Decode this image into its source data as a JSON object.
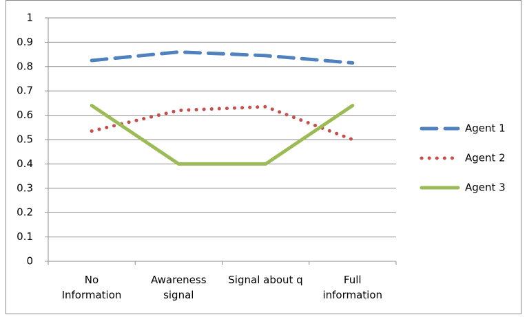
{
  "chart_data": {
    "type": "line",
    "categories": [
      "No\nInformation",
      "Awareness\nsignal",
      "Signal about q",
      "Full\ninformation"
    ],
    "series": [
      {
        "name": "Agent 1",
        "color": "#4f81bd",
        "style": "dashed",
        "values": [
          0.825,
          0.86,
          0.845,
          0.815
        ]
      },
      {
        "name": "Agent 2",
        "color": "#c0504d",
        "style": "dotted",
        "values": [
          0.535,
          0.62,
          0.635,
          0.5
        ]
      },
      {
        "name": "Agent 3",
        "color": "#9bbb59",
        "style": "solid",
        "values": [
          0.64,
          0.4,
          0.4,
          0.64
        ]
      }
    ],
    "ylim": [
      0,
      1
    ],
    "yticks": [
      0,
      0.1,
      0.2,
      0.3,
      0.4,
      0.5,
      0.6,
      0.7,
      0.8,
      0.9,
      1
    ],
    "grid": true,
    "legend": "right"
  }
}
